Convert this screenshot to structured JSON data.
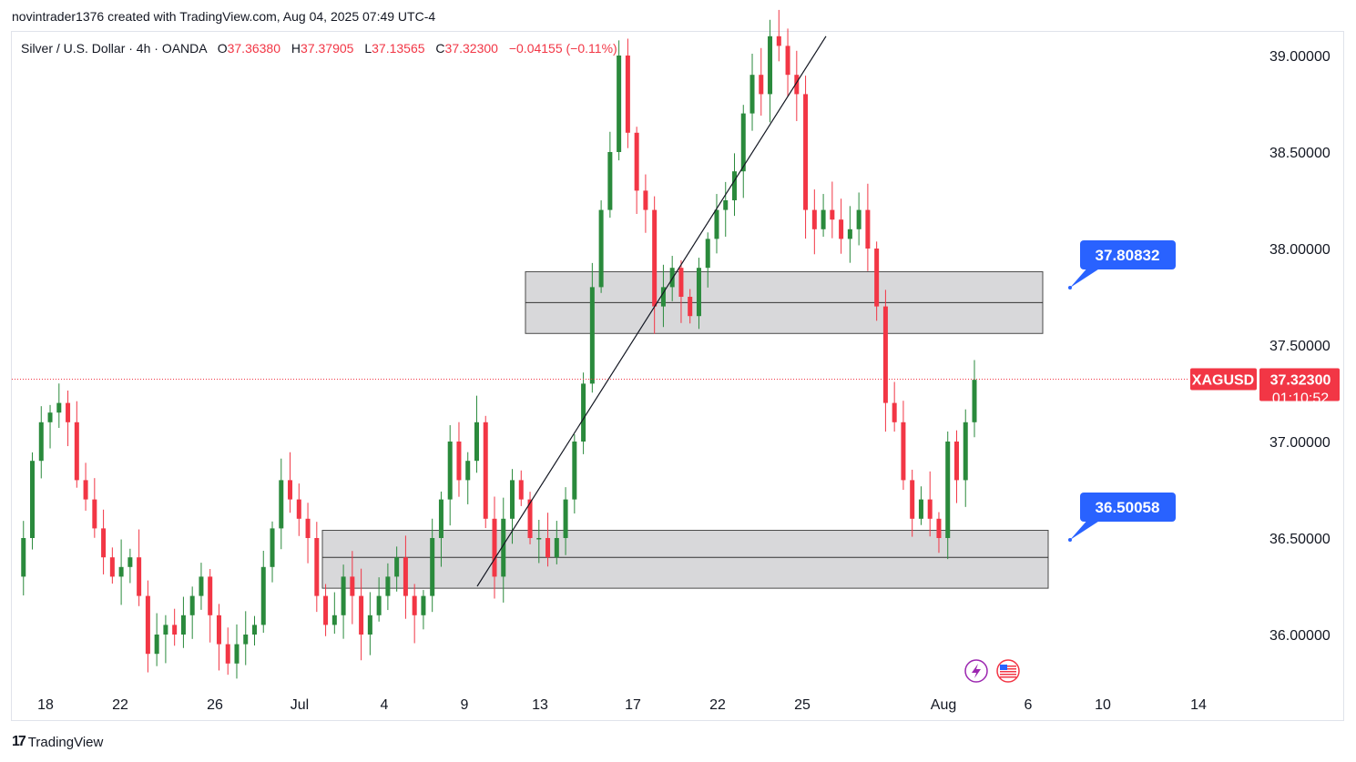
{
  "header": {
    "credit": "novintrader1376 created with TradingView.com, Aug 04, 2025 07:49 UTC-4"
  },
  "legend": {
    "symbol": "Silver / U.S. Dollar · 4h · OANDA",
    "open_label": "O",
    "open": "37.36380",
    "high_label": "H",
    "high": "37.37905",
    "low_label": "L",
    "low": "37.13565",
    "close_label": "C",
    "close": "37.32300",
    "change": "−0.04155 (−0.11%)"
  },
  "footer": {
    "brand": "TradingView",
    "logo": "17"
  },
  "colors": {
    "up": "#2a8a3c",
    "down": "#f23645",
    "callout": "#2962ff",
    "zone": "#d6d6d8"
  },
  "icons": [
    "lightning-icon",
    "us-flag-icon"
  ],
  "chart_data": {
    "type": "candlestick",
    "symbol_tag": "XAGUSD",
    "last_price": "37.32300",
    "countdown": "01:10:52",
    "y_ticks": [
      "39.00000",
      "38.50000",
      "38.00000",
      "37.50000",
      "37.00000",
      "36.50000",
      "36.00000"
    ],
    "y_tick_values": [
      39.0,
      38.5,
      38.0,
      37.5,
      37.0,
      36.5,
      36.0
    ],
    "ylim": [
      35.77,
      39.14
    ],
    "x_ticks": [
      "18",
      "22",
      "26",
      "Jul",
      "4",
      "9",
      "13",
      "17",
      "22",
      "25",
      "Aug",
      "6",
      "10",
      "14"
    ],
    "annotations": [
      {
        "label": "37.80832",
        "value": 37.80832
      },
      {
        "label": "36.50058",
        "value": 36.50058
      }
    ],
    "zones": [
      {
        "top": 37.88,
        "bottom": 37.56,
        "mid": 37.72
      },
      {
        "top": 36.54,
        "bottom": 36.24,
        "mid": 36.4
      }
    ],
    "trendline": {
      "from": 36.25,
      "to": 39.1
    },
    "close_path": [
      36.3,
      36.5,
      36.9,
      37.1,
      37.15,
      37.2,
      37.1,
      36.8,
      36.7,
      36.55,
      36.4,
      36.3,
      36.35,
      36.4,
      36.2,
      35.9,
      36.0,
      36.05,
      36.0,
      36.1,
      36.2,
      36.3,
      36.1,
      35.95,
      35.85,
      35.95,
      36.0,
      36.05,
      36.35,
      36.55,
      36.8,
      36.7,
      36.6,
      36.5,
      36.2,
      36.05,
      36.1,
      36.3,
      36.2,
      36.0,
      36.1,
      36.2,
      36.3,
      36.4,
      36.2,
      36.1,
      36.2,
      36.5,
      36.7,
      37.0,
      36.8,
      36.9,
      37.1,
      36.6,
      36.3,
      36.6,
      36.8,
      36.7,
      36.5,
      36.5,
      36.4,
      36.5,
      36.7,
      37.0,
      37.3,
      37.8,
      38.2,
      38.5,
      39.0,
      38.6,
      38.3,
      38.2,
      37.7,
      37.8,
      37.9,
      37.75,
      37.65,
      37.9,
      38.05,
      38.2,
      38.25,
      38.4,
      38.7,
      38.9,
      38.8,
      39.1,
      39.05,
      38.9,
      38.8,
      38.2,
      38.1,
      38.2,
      38.15,
      38.05,
      38.1,
      38.2,
      38.0,
      37.7,
      37.2,
      37.1,
      36.8,
      36.6,
      36.7,
      36.6,
      36.5,
      37.0,
      36.8,
      37.1,
      37.32
    ]
  }
}
